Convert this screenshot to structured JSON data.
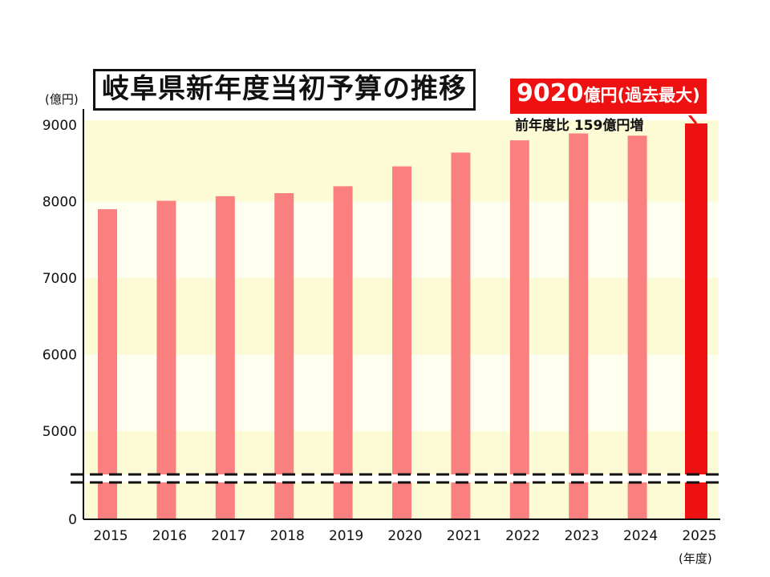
{
  "colors": {
    "bar": "#fa8080",
    "bar_highlight": "#ee1111",
    "band_yellow": "#fdfad6",
    "band_light": "#fffff0",
    "axis": "#111111"
  },
  "header": {
    "title": "岐阜県新年度当初予算の推移",
    "highlight_value": "9020",
    "highlight_unit": "億円(過去最大)",
    "sub_note": "前年度比 159億円増"
  },
  "chart_data": {
    "type": "bar",
    "title": "岐阜県新年度当初予算の推移",
    "y_unit_label": "(億円)",
    "x_unit_label": "(年度)",
    "categories": [
      "2015",
      "2016",
      "2017",
      "2018",
      "2019",
      "2020",
      "2021",
      "2022",
      "2023",
      "2024",
      "2025"
    ],
    "values": [
      7900,
      8010,
      8070,
      8110,
      8200,
      8460,
      8640,
      8800,
      8890,
      8861,
      9020
    ],
    "highlight_index": 10,
    "y_ticks": [
      "0",
      "5000",
      "6000",
      "7000",
      "8000",
      "9000"
    ],
    "y_axis_break": true,
    "ylim": [
      0,
      9000
    ]
  }
}
